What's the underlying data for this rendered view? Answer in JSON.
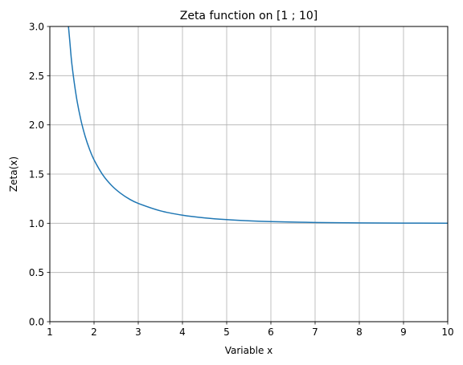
{
  "chart_data": {
    "type": "line",
    "title": "Zeta function on [1 ; 10]",
    "xlabel": "Variable x",
    "ylabel": "Zeta(x)",
    "xlim": [
      1,
      10
    ],
    "ylim": [
      0,
      3.0
    ],
    "grid": true,
    "legend": "none",
    "x_ticks": [
      "1",
      "2",
      "3",
      "4",
      "5",
      "6",
      "7",
      "8",
      "9",
      "10"
    ],
    "y_ticks": [
      "0.0",
      "0.5",
      "1.0",
      "1.5",
      "2.0",
      "2.5",
      "3.0"
    ],
    "series": [
      {
        "color": "#1f77b4",
        "x": [
          1.4,
          1.45,
          1.5,
          1.6,
          1.7,
          1.8,
          1.9,
          2.0,
          2.2,
          2.4,
          2.6,
          2.8,
          3.0,
          3.5,
          4.0,
          4.5,
          5.0,
          5.5,
          6.0,
          7.0,
          8.0,
          9.0,
          10.0
        ],
        "y": [
          3.1055,
          2.8582,
          2.6124,
          2.2858,
          2.0543,
          1.8822,
          1.7497,
          1.6449,
          1.4905,
          1.3831,
          1.305,
          1.2459,
          1.2021,
          1.1267,
          1.0823,
          1.0547,
          1.0369,
          1.0252,
          1.0173,
          1.0083,
          1.0041,
          1.002,
          1.001
        ]
      }
    ]
  }
}
